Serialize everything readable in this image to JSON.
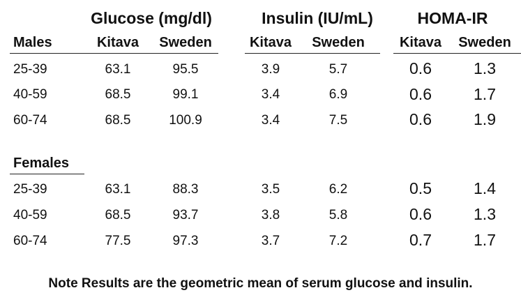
{
  "groups": {
    "glucose": "Glucose (mg/dl)",
    "insulin": "Insulin (IU/mL)",
    "homa": "HOMA-IR"
  },
  "columns": {
    "kitava": "Kitava",
    "sweden": "Sweden"
  },
  "males": {
    "label": "Males",
    "rows": [
      {
        "age": "25-39",
        "glucose_kitava": "63.1",
        "glucose_sweden": "95.5",
        "insulin_kitava": "3.9",
        "insulin_sweden": "5.7",
        "homa_kitava": "0.6",
        "homa_sweden": "1.3"
      },
      {
        "age": "40-59",
        "glucose_kitava": "68.5",
        "glucose_sweden": "99.1",
        "insulin_kitava": "3.4",
        "insulin_sweden": "6.9",
        "homa_kitava": "0.6",
        "homa_sweden": "1.7"
      },
      {
        "age": "60-74",
        "glucose_kitava": "68.5",
        "glucose_sweden": "100.9",
        "insulin_kitava": "3.4",
        "insulin_sweden": "7.5",
        "homa_kitava": "0.6",
        "homa_sweden": "1.9"
      }
    ]
  },
  "females": {
    "label": "Females",
    "rows": [
      {
        "age": "25-39",
        "glucose_kitava": "63.1",
        "glucose_sweden": "88.3",
        "insulin_kitava": "3.5",
        "insulin_sweden": "6.2",
        "homa_kitava": "0.5",
        "homa_sweden": "1.4"
      },
      {
        "age": "40-59",
        "glucose_kitava": "68.5",
        "glucose_sweden": "93.7",
        "insulin_kitava": "3.8",
        "insulin_sweden": "5.8",
        "homa_kitava": "0.6",
        "homa_sweden": "1.3"
      },
      {
        "age": "60-74",
        "glucose_kitava": "77.5",
        "glucose_sweden": "97.3",
        "insulin_kitava": "3.7",
        "insulin_sweden": "7.2",
        "homa_kitava": "0.7",
        "homa_sweden": "1.7"
      }
    ]
  },
  "note": "Note Results are the geometric mean of serum glucose and insulin."
}
